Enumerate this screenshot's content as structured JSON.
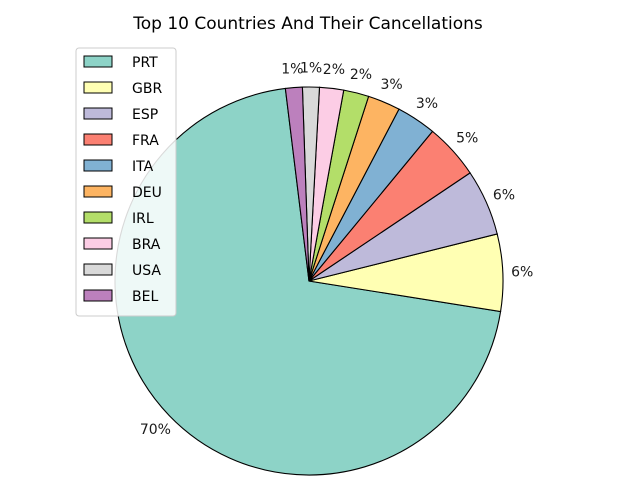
{
  "chart_data": {
    "type": "pie",
    "title": "Top 10 Countries And Their Cancellations",
    "legend_position": "upper-left",
    "start_angle_deg": 97,
    "direction": "counterclockwise",
    "labels": [
      "PRT",
      "GBR",
      "ESP",
      "FRA",
      "ITA",
      "DEU",
      "IRL",
      "BRA",
      "USA",
      "BEL"
    ],
    "values": [
      70.4,
      6.4,
      5.5,
      4.6,
      3.3,
      2.7,
      2.1,
      2.0,
      1.4,
      1.4
    ],
    "pct_labels": [
      "70%",
      "6%",
      "6%",
      "5%",
      "3%",
      "3%",
      "2%",
      "2%",
      "1%",
      "1%"
    ],
    "colors": [
      "#8dd3c7",
      "#ffffb3",
      "#bebada",
      "#fb8072",
      "#80b1d3",
      "#fdb462",
      "#b3de69",
      "#fccde5",
      "#d9d9d9",
      "#bc80bd"
    ]
  }
}
